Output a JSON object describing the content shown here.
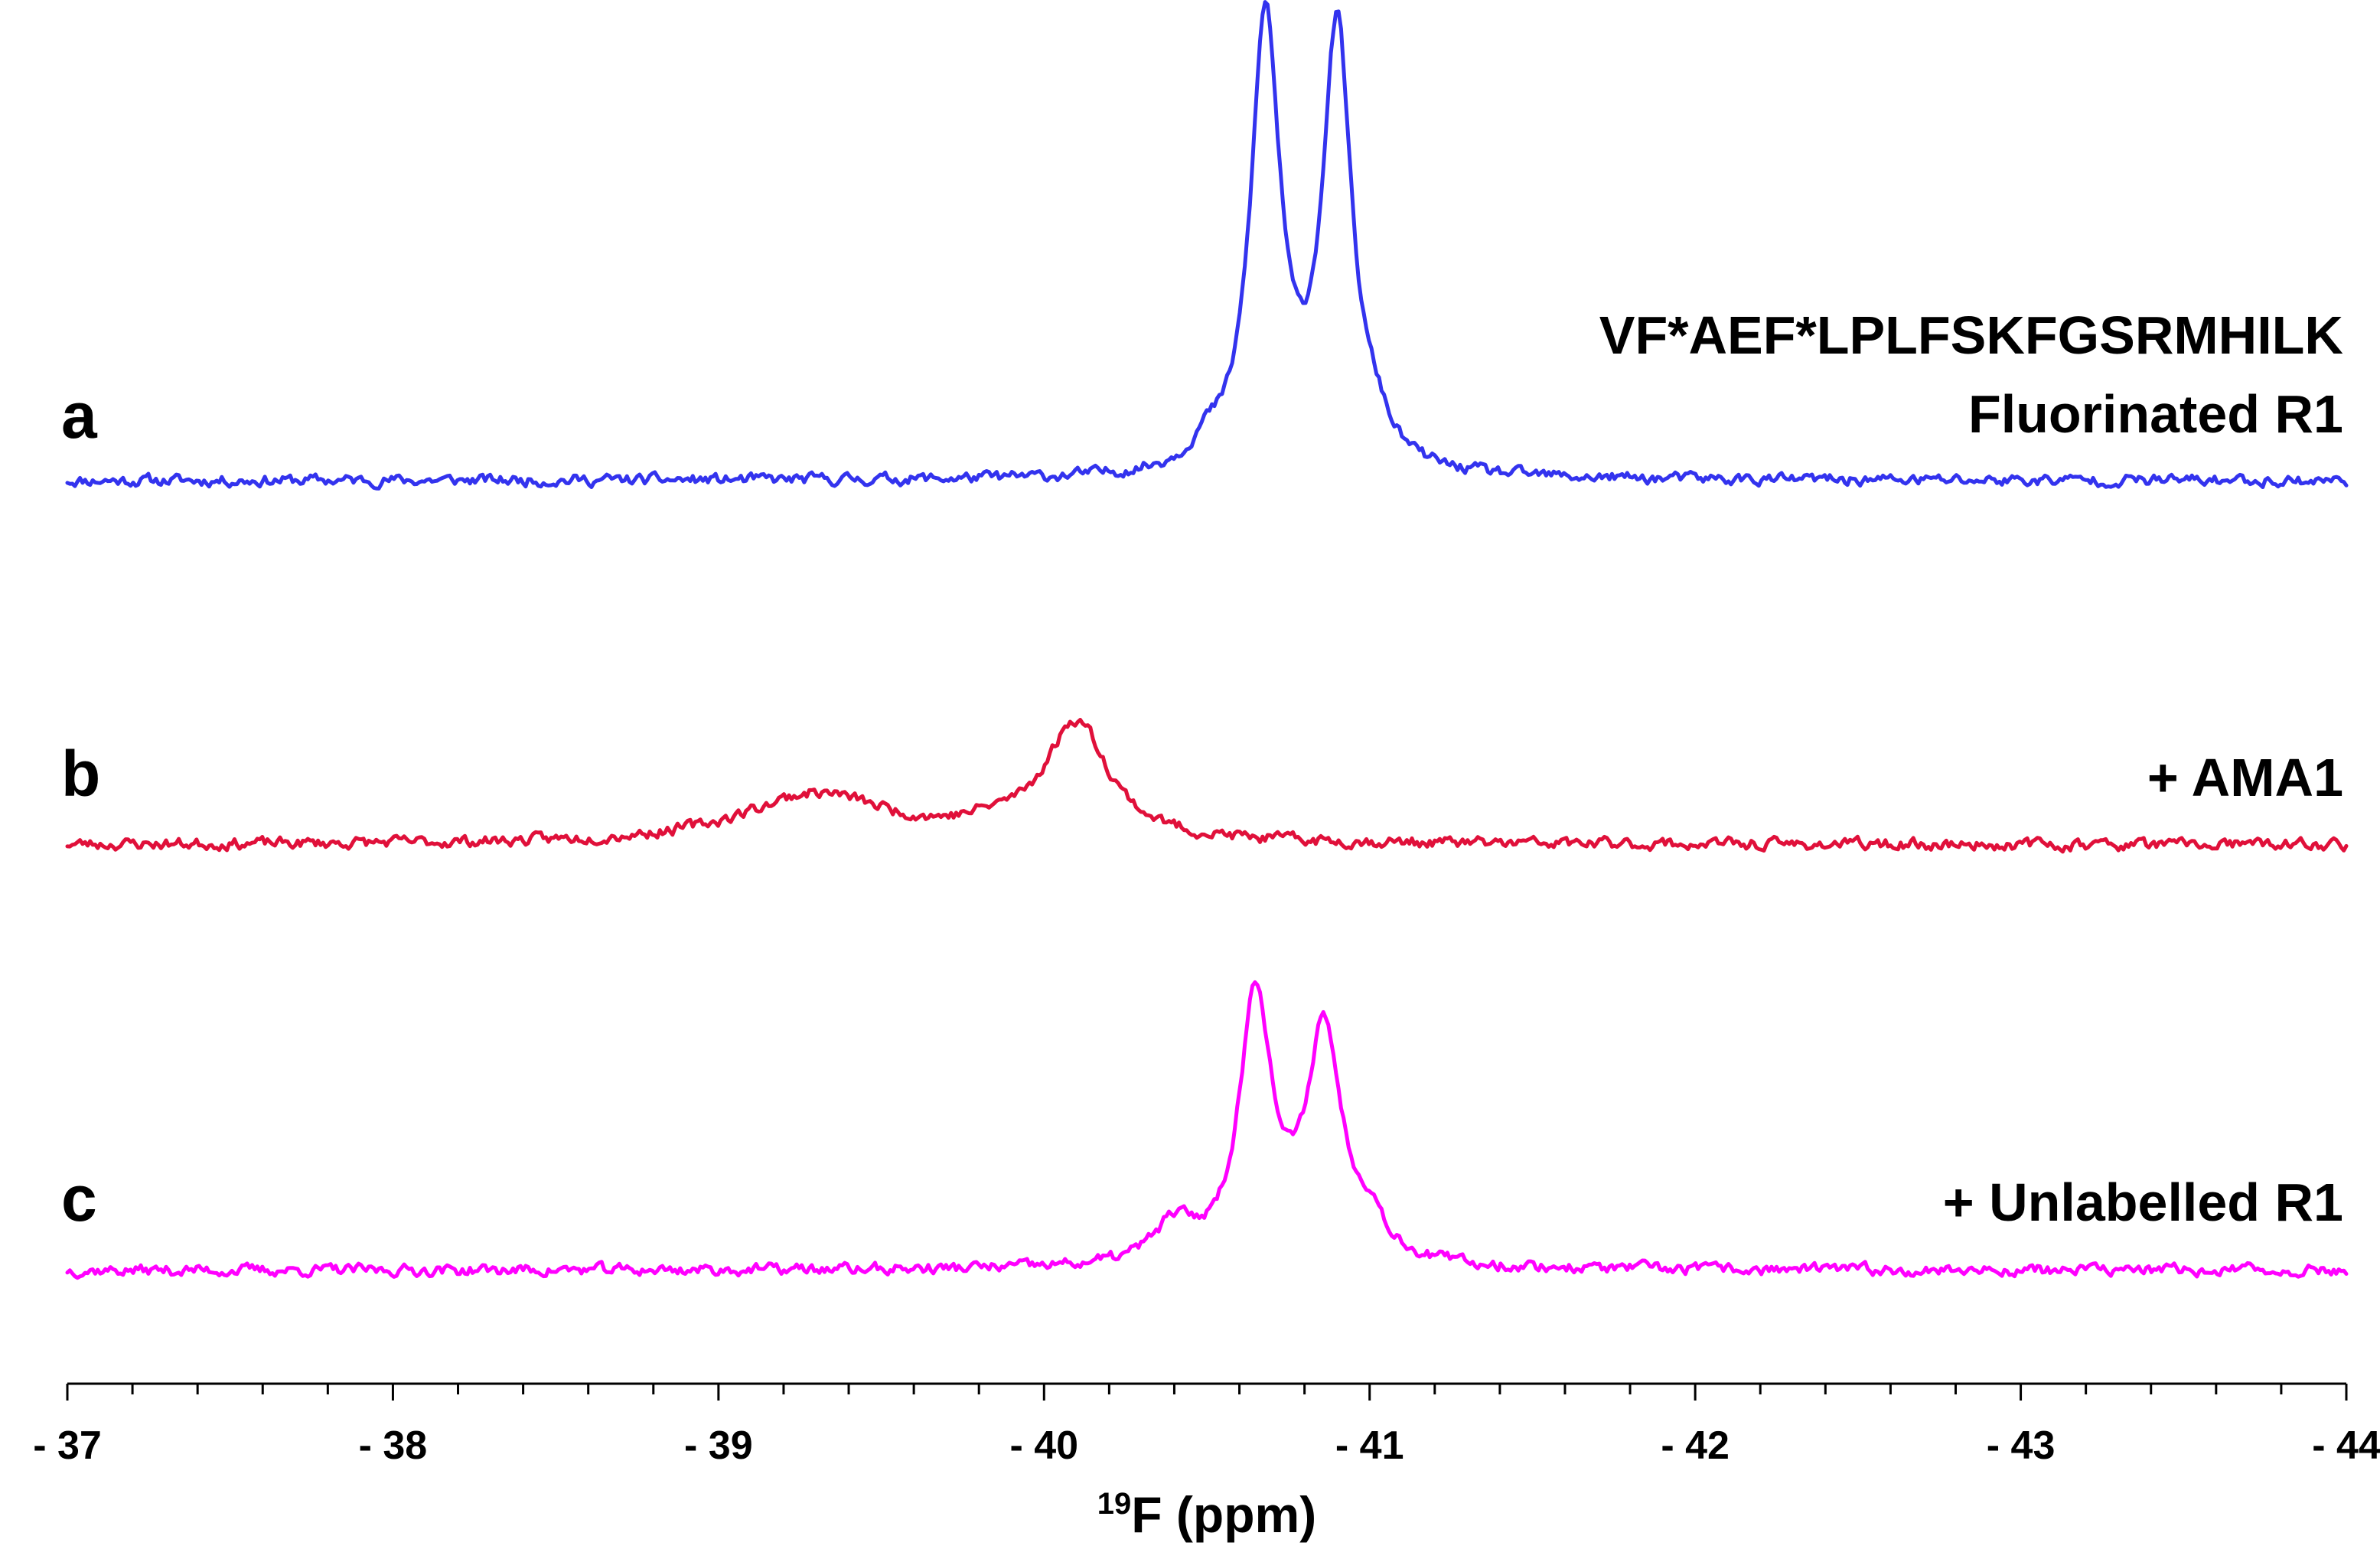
{
  "chart_data": {
    "type": "line",
    "title": "",
    "xlabel": {
      "superscript": "19",
      "text": "F (ppm)"
    },
    "ylabel": "",
    "xlim": [
      -37,
      -44
    ],
    "x_reversed": true,
    "grid": false,
    "legend": "none",
    "x_ticks": [
      {
        "value": -37,
        "label": "- 37"
      },
      {
        "value": -38,
        "label": "- 38"
      },
      {
        "value": -39,
        "label": "- 39"
      },
      {
        "value": -40,
        "label": "- 40"
      },
      {
        "value": -41,
        "label": "- 41"
      },
      {
        "value": -42,
        "label": "- 42"
      },
      {
        "value": -43,
        "label": "- 43"
      },
      {
        "value": -44,
        "label": "- 44"
      }
    ],
    "minor_tick_step": 0.2,
    "series": [
      {
        "name": "a",
        "panel_letter": "a",
        "label_lines": [
          "VF*AEF*LPLFSKFGSRMHILK",
          "Fluorinated R1"
        ],
        "color": "#3333ee",
        "baseline_intensity": 0,
        "noise": 0.045,
        "seed": 11,
        "peaks": [
          {
            "center": -40.68,
            "height": 5.9,
            "width": 0.055
          },
          {
            "center": -40.9,
            "height": 5.7,
            "width": 0.055
          },
          {
            "center": -40.5,
            "height": 0.25,
            "width": 0.05
          },
          {
            "center": -41.02,
            "height": 0.3,
            "width": 0.05
          }
        ]
      },
      {
        "name": "b",
        "panel_letter": "b",
        "label_lines": [
          "+ AMA1"
        ],
        "color": "#e0103a",
        "baseline_intensity": 0,
        "noise": 0.045,
        "seed": 23,
        "peaks": [
          {
            "center": -39.3,
            "height": 0.65,
            "width": 0.28
          },
          {
            "center": -40.1,
            "height": 1.55,
            "width": 0.12
          },
          {
            "center": -39.85,
            "height": 0.12,
            "width": 0.12
          }
        ]
      },
      {
        "name": "c",
        "panel_letter": "c",
        "label_lines": [
          "+ Unlabelled R1"
        ],
        "color": "#ff00ff",
        "baseline_intensity": 0,
        "noise": 0.045,
        "seed": 37,
        "peaks": [
          {
            "center": -40.4,
            "height": 0.5,
            "width": 0.08
          },
          {
            "center": -40.65,
            "height": 3.5,
            "width": 0.06
          },
          {
            "center": -40.86,
            "height": 3.0,
            "width": 0.065
          },
          {
            "center": -41.0,
            "height": 0.45,
            "width": 0.06
          }
        ]
      }
    ]
  }
}
